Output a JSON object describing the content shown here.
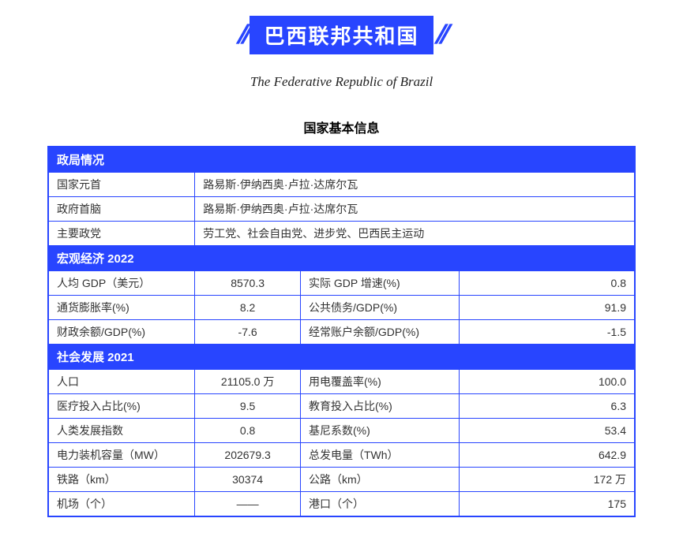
{
  "title_cn": "巴西联邦共和国",
  "title_en": "The Federative Republic of Brazil",
  "section_title": "国家基本信息",
  "colors": {
    "primary": "#2845ff",
    "text": "#333333",
    "bg": "#ffffff"
  },
  "politics": {
    "header": "政局情况",
    "rows": [
      {
        "label": "国家元首",
        "value": "路易斯·伊纳西奥·卢拉·达席尔瓦"
      },
      {
        "label": "政府首脑",
        "value": "路易斯·伊纳西奥·卢拉·达席尔瓦"
      },
      {
        "label": "主要政党",
        "value": "劳工党、社会自由党、进步党、巴西民主运动"
      }
    ]
  },
  "macro": {
    "header": "宏观经济 2022",
    "rows": [
      {
        "l1": "人均 GDP（美元）",
        "v1": "8570.3",
        "l2": "实际 GDP 增速(%)",
        "v2": "0.8"
      },
      {
        "l1": "通货膨胀率(%)",
        "v1": "8.2",
        "l2": "公共债务/GDP(%)",
        "v2": "91.9"
      },
      {
        "l1": "财政余额/GDP(%)",
        "v1": "-7.6",
        "l2": "经常账户余额/GDP(%)",
        "v2": "-1.5"
      }
    ]
  },
  "social": {
    "header": "社会发展 2021",
    "rows": [
      {
        "l1": "人口",
        "v1": "21105.0 万",
        "l2": "用电覆盖率(%)",
        "v2": "100.0"
      },
      {
        "l1": "医疗投入占比(%)",
        "v1": "9.5",
        "l2": "教育投入占比(%)",
        "v2": "6.3"
      },
      {
        "l1": "人类发展指数",
        "v1": "0.8",
        "l2": "基尼系数(%)",
        "v2": "53.4"
      },
      {
        "l1": "电力装机容量（MW）",
        "v1": "202679.3",
        "l2": "总发电量（TWh）",
        "v2": "642.9"
      },
      {
        "l1": "铁路（km）",
        "v1": "30374",
        "l2": "公路（km）",
        "v2": "172 万"
      },
      {
        "l1": "机场（个）",
        "v1": "——",
        "l2": "港口（个）",
        "v2": "175"
      }
    ]
  }
}
